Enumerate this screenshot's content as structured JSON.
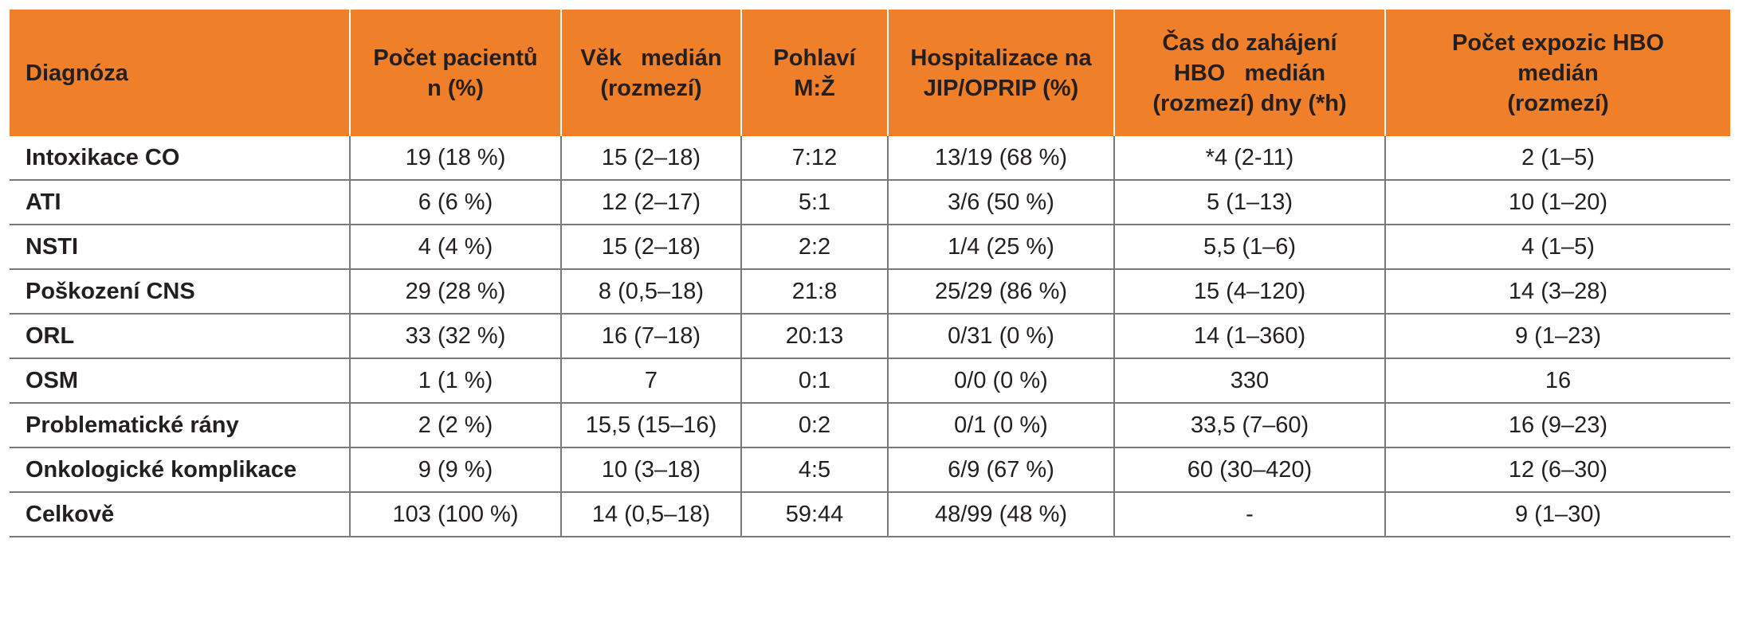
{
  "colors": {
    "header_background": "#f07f2a",
    "grid_lines": "#7a7a7a",
    "text": "#231f20"
  },
  "table": {
    "headers": [
      [
        "Diagnóza"
      ],
      [
        "Počet pacientů",
        "n (%)"
      ],
      [
        "Věk   medián",
        "(rozmezí)"
      ],
      [
        "Pohlaví M:Ž"
      ],
      [
        "Hospitalizace na",
        "JIP/OPRIP (%)"
      ],
      [
        "Čas do zahájení",
        "HBO   medián",
        "(rozmezí) dny (*h)"
      ],
      [
        "Počet expozic HBO",
        "medián",
        "(rozmezí)"
      ]
    ],
    "rows": [
      [
        "Intoxikace CO",
        "19 (18 %)",
        "15 (2–18)",
        "7:12",
        "13/19 (68 %)",
        "*4 (2-11)",
        "2 (1–5)"
      ],
      [
        "ATI",
        "6 (6 %)",
        "12 (2–17)",
        "5:1",
        "3/6 (50 %)",
        "5 (1–13)",
        "10 (1–20)"
      ],
      [
        "NSTI",
        "4 (4 %)",
        "15 (2–18)",
        "2:2",
        "1/4 (25 %)",
        "5,5 (1–6)",
        "4 (1–5)"
      ],
      [
        "Poškození CNS",
        "29 (28 %)",
        "8 (0,5–18)",
        "21:8",
        "25/29 (86 %)",
        "15 (4–120)",
        "14 (3–28)"
      ],
      [
        "ORL",
        "33 (32 %)",
        "16 (7–18)",
        "20:13",
        "0/31 (0 %)",
        "14 (1–360)",
        "9 (1–23)"
      ],
      [
        "OSM",
        "1 (1 %)",
        "7",
        "0:1",
        "0/0 (0 %)",
        "330",
        "16"
      ],
      [
        "Problematické rány",
        "2 (2 %)",
        "15,5 (15–16)",
        "0:2",
        "0/1 (0 %)",
        "33,5 (7–60)",
        "16 (9–23)"
      ],
      [
        "Onkologické komplikace",
        "9 (9 %)",
        "10 (3–18)",
        "4:5",
        "6/9 (67 %)",
        "60 (30–420)",
        "12 (6–30)"
      ],
      [
        "Celkově",
        "103 (100 %)",
        "14 (0,5–18)",
        "59:44",
        "48/99 (48 %)",
        "-",
        "9 (1–30)"
      ]
    ]
  }
}
